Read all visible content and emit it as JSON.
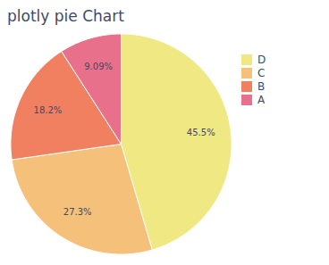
{
  "chart_data": {
    "type": "pie",
    "title": "plotly pie Chart",
    "categories": [
      "D",
      "C",
      "B",
      "A"
    ],
    "values": [
      45.5,
      27.3,
      18.2,
      9.09
    ],
    "value_labels": [
      "45.5%",
      "27.3%",
      "18.2%",
      "9.09%"
    ],
    "colors": [
      "#f0e882",
      "#f5c07a",
      "#f08060",
      "#e8708a"
    ],
    "data_labels": true,
    "legend": "right"
  }
}
